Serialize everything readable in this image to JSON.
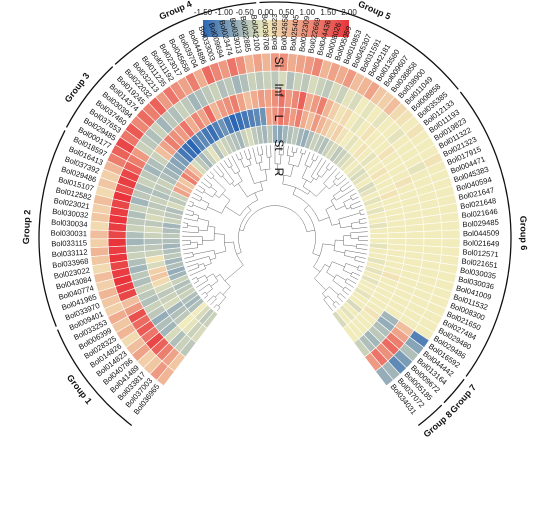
{
  "chart_data": {
    "type": "heatmap",
    "layout": "circular",
    "colorbar": {
      "ticks": [
        "-1.50",
        "-1.00",
        "-0.50",
        "0.00",
        "0.50",
        "1.00",
        "1.50",
        "2.00"
      ],
      "range": [
        -1.5,
        2.0
      ],
      "colors": [
        "#2b66b4",
        "#f2ecbc",
        "#e8343a"
      ]
    },
    "rings": [
      "Si",
      "Inf",
      "L",
      "St",
      "R"
    ],
    "genes": [
      "Bol036965",
      "Bol037003",
      "Bol033817",
      "Bol041489",
      "Bol040786",
      "Bol014823",
      "Bol014826",
      "Bol028325",
      "Bol006399",
      "Bol033253",
      "Bol009401",
      "Bol033970",
      "Bol041965",
      "Bol040774",
      "Bol043084",
      "Bol023022",
      "Bol033968",
      "Bol033112",
      "Bol033115",
      "Bol030031",
      "Bol030034",
      "Bol030032",
      "Bol023021",
      "Bol012582",
      "Bol015107",
      "Bol029486",
      "Bol037392",
      "Bol016413",
      "Bol018597",
      "Bol000177",
      "Bol029485",
      "Bol037653",
      "Bol037460",
      "Bol030394",
      "Bol014374",
      "Bol019245",
      "Bol022032",
      "Bol032213",
      "Bol011235",
      "Bol011192",
      "Bol023017",
      "Bol045658",
      "Bol039704",
      "Bol044886",
      "Bol033003",
      "Bol009694",
      "Bol023474",
      "Bol033013",
      "Bol022885",
      "Bol042100",
      "Bol036708",
      "Bol043623",
      "Bol042658",
      "Bol025405",
      "Bol022309",
      "Bol022669",
      "Bol044436",
      "Bol008026",
      "Bol005059",
      "Bol010853",
      "Bol045307",
      "Bol031591",
      "Bol042181",
      "Bol013580",
      "Bol009607",
      "Bol036858",
      "Bol038900",
      "Bol011049",
      "Bol008858",
      "Bol035385",
      "Bol012133",
      "Bol011193",
      "Bol019823",
      "Bol011322",
      "Bol021323",
      "Bol017915",
      "Bol004471",
      "Bol045383",
      "Bol040594",
      "Bol021647",
      "Bol021648",
      "Bol021646",
      "Bol029485",
      "Bol044509",
      "Bol021649",
      "Bol012571",
      "Bol021651",
      "Bol030035",
      "Bol030036",
      "Bol041009",
      "Bol011532",
      "Bol008300",
      "Bol021650",
      "Bol027484",
      "Bol029480",
      "Bol029486",
      "Bol016592",
      "Bol044442",
      "Bol013164",
      "Bol009672",
      "Bol005185",
      "Bol037072",
      "Bol034031"
    ],
    "groups": [
      {
        "name": "Group 1",
        "start": 0,
        "end": 10
      },
      {
        "name": "Group 2",
        "start": 11,
        "end": 28
      },
      {
        "name": "Group 3",
        "start": 29,
        "end": 35
      },
      {
        "name": "Group 4",
        "start": 36,
        "end": 49
      },
      {
        "name": "Group 5",
        "start": 50,
        "end": 69
      },
      {
        "name": "Group 6",
        "start": 70,
        "end": 96
      },
      {
        "name": "Group 7",
        "start": 97,
        "end": 99
      },
      {
        "name": "Group 8",
        "start": 100,
        "end": 102
      }
    ],
    "values": {
      "R": [
        -0.3,
        -0.4,
        -0.2,
        0.0,
        -0.5,
        -0.6,
        -0.5,
        -0.3,
        -0.4,
        -0.5,
        -0.3,
        -0.6,
        -0.7,
        -0.5,
        -0.6,
        -0.4,
        -0.5,
        -0.6,
        -0.5,
        -0.4,
        -0.5,
        -0.6,
        -0.3,
        -0.4,
        -0.5,
        -0.2,
        -0.4,
        -0.3,
        0.8,
        0.6,
        0.4,
        1.2,
        0.9,
        0.5,
        -0.2,
        -0.4,
        -0.6,
        -0.3,
        -0.1,
        -0.5,
        -0.2,
        -0.3,
        -0.4,
        -0.5,
        -0.6,
        -0.3,
        -0.2,
        -0.4,
        -0.5,
        -0.6,
        -0.4,
        -0.7,
        -0.8,
        -0.6,
        -0.5,
        -0.4,
        -0.6,
        -0.7,
        -0.5,
        -0.3,
        -0.4,
        -0.5,
        -0.3,
        -0.2,
        -0.4,
        -0.3,
        -0.2,
        -0.1,
        0.0,
        -0.1,
        -0.2,
        -0.1,
        0.0,
        -0.2,
        -0.1,
        0.0,
        -0.1,
        0.0,
        -0.1,
        0.0,
        0.0,
        -0.1,
        0.0,
        0.0,
        0.0,
        -0.1,
        0.0,
        0.0,
        -0.1,
        0.0,
        -0.1,
        0.0,
        -0.1,
        0.0,
        0.0,
        -0.1,
        0.0,
        0.0,
        -0.2,
        0.0,
        -0.1,
        0.0,
        -0.2
      ],
      "St": [
        -0.2,
        -0.3,
        -0.1,
        0.0,
        -0.4,
        -0.5,
        -0.6,
        -0.2,
        -0.3,
        -0.4,
        -0.2,
        0.2,
        0.4,
        0.3,
        -0.2,
        0.1,
        -0.3,
        -0.4,
        -0.5,
        -0.3,
        -0.2,
        -0.4,
        -0.2,
        -0.3,
        -0.4,
        -0.3,
        -0.5,
        -0.4,
        -0.3,
        -0.5,
        -0.6,
        -0.7,
        -0.8,
        -0.9,
        -1.3,
        -1.4,
        -1.5,
        -1.2,
        -1.1,
        -1.3,
        -1.4,
        -1.2,
        -1.0,
        -1.3,
        -1.5,
        -1.4,
        -1.3,
        -1.2,
        -1.1,
        -1.0,
        0.8,
        1.0,
        1.3,
        1.1,
        0.9,
        1.2,
        0.7,
        0.5,
        0.9,
        0.6,
        0.4,
        0.2,
        0.3,
        0.1,
        0.0,
        -0.1,
        0.0,
        0.1,
        0.0,
        -0.1,
        0.0,
        0.0,
        0.1,
        0.0,
        0.0,
        0.0,
        0.1,
        0.0,
        0.0,
        0.0,
        0.0,
        0.0,
        0.0,
        0.0,
        0.0,
        0.0,
        0.0,
        0.0,
        0.0,
        0.0,
        0.1,
        0.0,
        0.0,
        0.0,
        0.0,
        0.0,
        0.0,
        0.1,
        0.0,
        0.0,
        0.0,
        0.0,
        0.0
      ],
      "L": [
        -0.4,
        -0.3,
        -0.5,
        -0.2,
        -0.6,
        -0.5,
        -0.7,
        -0.4,
        -0.3,
        -0.5,
        -0.4,
        -0.3,
        -0.5,
        -0.4,
        -0.6,
        -0.5,
        -0.3,
        -0.4,
        -0.6,
        -0.5,
        -0.3,
        -0.4,
        -0.5,
        -0.3,
        -0.6,
        -0.4,
        -0.5,
        -0.3,
        -0.4,
        -0.6,
        -0.5,
        -0.3,
        0.5,
        0.8,
        1.2,
        1.0,
        0.9,
        1.3,
        0.7,
        1.1,
        0.8,
        1.4,
        0.6,
        0.9,
        1.0,
        1.2,
        0.8,
        0.5,
        0.7,
        0.9,
        0.8,
        1.0,
        1.3,
        0.9,
        1.1,
        1.5,
        0.7,
        0.9,
        1.2,
        0.6,
        0.3,
        0.1,
        0.2,
        0.0,
        -0.1,
        0.0,
        0.1,
        0.0,
        0.0,
        0.0,
        0.1,
        0.0,
        0.0,
        0.0,
        0.0,
        0.1,
        0.0,
        0.0,
        0.0,
        0.0,
        0.0,
        0.0,
        0.0,
        0.0,
        0.0,
        0.0,
        0.0,
        0.0,
        0.0,
        0.0,
        0.0,
        0.0,
        0.0,
        0.0,
        0.0,
        0.0,
        -0.6,
        -0.7,
        -0.5,
        -0.4,
        -0.6,
        -0.5,
        -0.3
      ],
      "Inf": [
        0.4,
        0.8,
        1.2,
        1.5,
        1.8,
        1.3,
        1.6,
        1.4,
        1.7,
        0.9,
        0.5,
        1.8,
        1.9,
        2.0,
        1.9,
        1.8,
        2.0,
        1.9,
        2.0,
        1.8,
        1.9,
        2.0,
        1.9,
        1.8,
        2.0,
        1.7,
        1.9,
        1.8,
        1.5,
        1.2,
        0.9,
        -0.3,
        -0.4,
        -0.5,
        -0.3,
        -0.6,
        -0.4,
        -0.5,
        -0.3,
        -0.4,
        -0.6,
        -0.5,
        -0.4,
        -0.3,
        -0.5,
        -0.4,
        -0.6,
        -0.5,
        -0.3,
        -0.4,
        -0.3,
        -0.4,
        -0.2,
        -0.5,
        -0.3,
        -0.4,
        -0.2,
        -0.3,
        -0.4,
        -0.2,
        -0.3,
        -0.1,
        -0.2,
        0.0,
        -0.1,
        0.0,
        -0.1,
        0.0,
        0.0,
        -0.1,
        0.0,
        0.0,
        0.0,
        0.0,
        -0.1,
        0.0,
        0.0,
        0.0,
        0.0,
        0.0,
        0.0,
        0.0,
        0.0,
        0.0,
        0.0,
        0.0,
        0.0,
        0.0,
        0.0,
        0.0,
        0.0,
        0.0,
        0.0,
        0.0,
        0.0,
        0.0,
        0.5,
        0.8,
        1.2,
        1.4,
        1.0,
        1.3,
        0.9
      ],
      "Si": [
        0.6,
        0.9,
        0.4,
        0.3,
        0.8,
        0.5,
        0.2,
        0.6,
        0.4,
        0.7,
        0.3,
        0.4,
        0.6,
        0.3,
        0.5,
        0.2,
        0.4,
        0.6,
        0.3,
        0.5,
        0.2,
        0.4,
        0.3,
        0.5,
        0.2,
        0.4,
        0.3,
        0.6,
        1.2,
        1.5,
        1.8,
        1.3,
        1.6,
        1.1,
        1.4,
        1.2,
        1.5,
        0.9,
        1.3,
        1.0,
        0.8,
        1.2,
        0.7,
        1.4,
        1.1,
        0.9,
        1.3,
        1.0,
        0.6,
        0.8,
        0.6,
        0.9,
        1.0,
        0.7,
        0.8,
        0.9,
        1.1,
        0.6,
        0.8,
        0.7,
        0.9,
        0.5,
        0.6,
        0.8,
        0.4,
        0.3,
        0.5,
        0.2,
        0.1,
        0.0,
        0.1,
        0.0,
        0.0,
        0.0,
        0.1,
        0.0,
        0.0,
        0.0,
        0.0,
        0.0,
        0.0,
        0.0,
        0.0,
        0.0,
        0.0,
        0.0,
        0.0,
        0.0,
        0.0,
        0.0,
        0.0,
        0.0,
        0.0,
        0.0,
        0.0,
        0.0,
        -1.2,
        -0.8,
        -0.5,
        -0.9,
        -1.1,
        -0.6,
        -0.7
      ]
    }
  }
}
